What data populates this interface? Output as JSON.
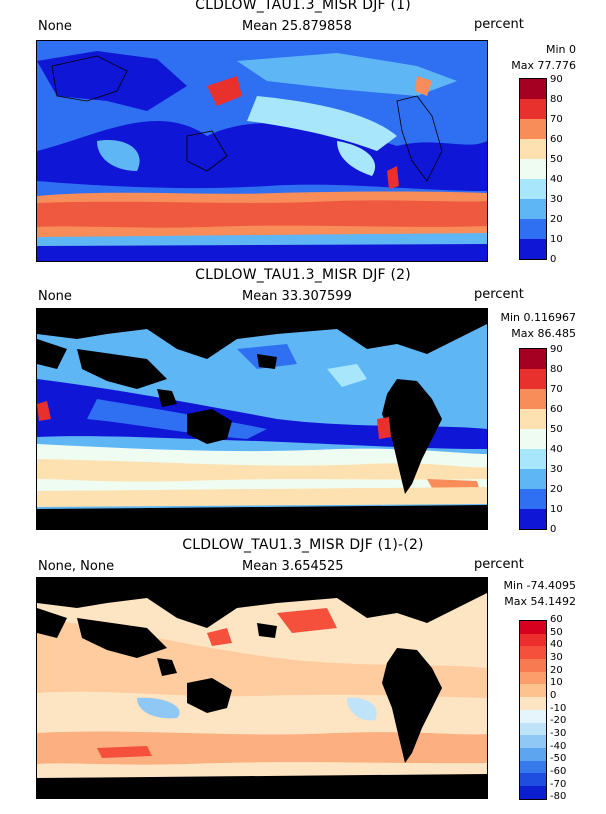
{
  "panels": [
    {
      "title": "CLDLOW_TAU1.3_MISR DJF (1)",
      "left_label": "None",
      "mean_label": "Mean 25.879858",
      "units": "percent",
      "min_label": "Min 0",
      "max_label": "Max 77.776",
      "colorbar": {
        "ticks": [
          "90",
          "80",
          "70",
          "60",
          "50",
          "40",
          "30",
          "20",
          "10",
          "0"
        ],
        "colors": [
          "#a50022",
          "#e8302c",
          "#f88d5a",
          "#fde1b0",
          "#eefcf2",
          "#a8e6fb",
          "#5fb6f5",
          "#2f6ff2",
          "#1016d6"
        ]
      },
      "land_black": false
    },
    {
      "title": "CLDLOW_TAU1.3_MISR DJF (2)",
      "left_label": "None",
      "mean_label": "Mean 33.307599",
      "units": "percent",
      "min_label": "Min 0.116967",
      "max_label": "Max 86.485",
      "colorbar": {
        "ticks": [
          "90",
          "80",
          "70",
          "60",
          "50",
          "40",
          "30",
          "20",
          "10",
          "0"
        ],
        "colors": [
          "#a50022",
          "#e8302c",
          "#f88d5a",
          "#fde1b0",
          "#eefcf2",
          "#a8e6fb",
          "#5fb6f5",
          "#2f6ff2",
          "#1016d6"
        ]
      },
      "land_black": true
    },
    {
      "title": "CLDLOW_TAU1.3_MISR DJF (1)-(2)",
      "left_label": "None, None",
      "mean_label": "Mean 3.654525",
      "units": "percent",
      "min_label": "Min -74.4095",
      "max_label": "Max 54.1492",
      "colorbar": {
        "ticks": [
          "60",
          "50",
          "40",
          "30",
          "20",
          "10",
          "0",
          "-10",
          "-20",
          "-30",
          "-40",
          "-50",
          "-60",
          "-70",
          "-80"
        ],
        "colors": [
          "#d7001f",
          "#ee2d2d",
          "#f4503c",
          "#f87a50",
          "#fb9e6b",
          "#fdc28e",
          "#fde4c2",
          "#e6f5fb",
          "#bfe3f9",
          "#8fc8f5",
          "#5da6ef",
          "#3579ea",
          "#1e4ee0",
          "#0b1fd0"
        ]
      },
      "land_black": true
    }
  ]
}
